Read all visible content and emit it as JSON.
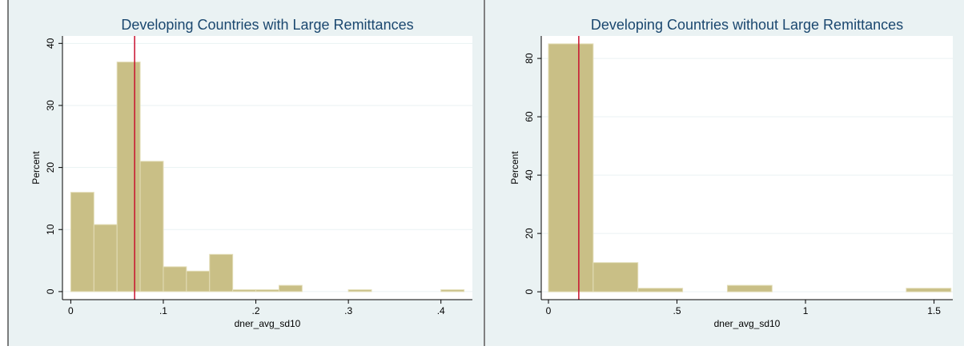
{
  "chart_data": [
    {
      "type": "histogram",
      "title": "Developing Countries with Large Remittances",
      "x_label": "dner_avg_sd10",
      "y_label": "Percent",
      "bins": [
        0,
        0.025,
        0.05,
        0.075,
        0.1,
        0.125,
        0.15,
        0.175,
        0.2,
        0.225,
        0.25,
        0.275,
        0.3,
        0.325,
        0.35,
        0.375,
        0.4,
        0.425
      ],
      "values": [
        16,
        10.8,
        37,
        21,
        4,
        3.3,
        6,
        0.3,
        0.3,
        1,
        0,
        0,
        0.3,
        0,
        0,
        0,
        0.3
      ],
      "color": "#c9bf86",
      "reference_line": 0.069,
      "reference_color": "#c8102e",
      "xlim": [
        -0.009,
        0.434
      ],
      "xticks": [
        0,
        {
          "value": 0.1,
          "label": ".1"
        },
        {
          "value": 0.2,
          "label": ".2"
        },
        {
          "value": 0.3,
          "label": ".3"
        },
        {
          "value": 0.4,
          "label": ".4"
        }
      ],
      "ylim": [
        -1.3,
        41.2
      ],
      "yticks": [
        0,
        10,
        20,
        30,
        40
      ],
      "grid": true
    },
    {
      "type": "histogram",
      "title": "Developing Countries without Large Remittances",
      "x_label": "dner_avg_sd10",
      "y_label": "Percent",
      "bins": [
        0,
        0.174,
        0.348,
        0.522,
        0.696,
        0.87,
        1.044,
        1.218,
        1.392,
        1.566
      ],
      "values": [
        85,
        10,
        1.2,
        0,
        2.2,
        0,
        0,
        0,
        1.2
      ],
      "color": "#c9bf86",
      "reference_line": 0.118,
      "reference_color": "#c8102e",
      "xlim": [
        -0.028,
        1.573
      ],
      "xticks": [
        0,
        {
          "value": 0.5,
          "label": ".5"
        },
        1,
        1.5
      ],
      "ylim": [
        -2.7,
        87.7
      ],
      "yticks": [
        0,
        20,
        40,
        60,
        80
      ],
      "grid": true
    }
  ]
}
